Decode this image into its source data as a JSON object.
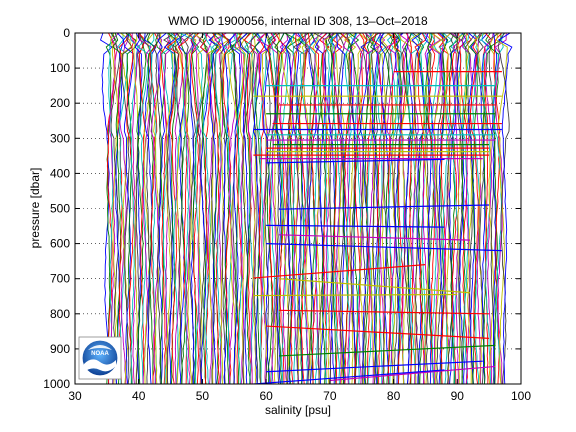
{
  "chart_data": {
    "type": "line",
    "title": "WMO ID 1900056, internal ID 308, 13–Oct–2018",
    "xlabel": "salinity [psu]",
    "ylabel": "pressure [dbar]",
    "xlim": [
      30,
      100
    ],
    "ylim": [
      1000,
      0
    ],
    "y_reversed": true,
    "xticks": [
      30,
      40,
      50,
      60,
      70,
      80,
      90,
      100
    ],
    "yticks": [
      0,
      100,
      200,
      300,
      400,
      500,
      600,
      700,
      800,
      900,
      1000
    ],
    "grid": "dotted, on y ticks",
    "legend": "none",
    "profile_colors": [
      "#0000ff",
      "#008000",
      "#ff0000",
      "#00bfbf",
      "#bf00bf",
      "#bfbf00",
      "#404040"
    ],
    "profiles": {
      "x_start": 35.0,
      "x_end": 97.5,
      "count": 260,
      "pressure_range": [
        0,
        1000
      ]
    },
    "bad_segments": [
      {
        "x": [
          80,
          97
        ],
        "y": [
          110,
          110
        ],
        "color": "#ff0000"
      },
      {
        "x": [
          60,
          96
        ],
        "y": [
          150,
          150
        ],
        "color": "#00bfbf"
      },
      {
        "x": [
          58,
          97
        ],
        "y": [
          180,
          180
        ],
        "color": "#bfbf00"
      },
      {
        "x": [
          62,
          96
        ],
        "y": [
          205,
          205
        ],
        "color": "#ff0000"
      },
      {
        "x": [
          60,
          96
        ],
        "y": [
          230,
          230
        ],
        "color": "#008000"
      },
      {
        "x": [
          61,
          97
        ],
        "y": [
          258,
          258
        ],
        "color": "#ff0000"
      },
      {
        "x": [
          58,
          97
        ],
        "y": [
          275,
          275
        ],
        "color": "#0000ff"
      },
      {
        "x": [
          60,
          96
        ],
        "y": [
          290,
          290
        ],
        "color": "#00bfbf"
      },
      {
        "x": [
          60,
          96
        ],
        "y": [
          305,
          305
        ],
        "color": "#bf00bf"
      },
      {
        "x": [
          61,
          95
        ],
        "y": [
          318,
          318
        ],
        "color": "#008000"
      },
      {
        "x": [
          60,
          95
        ],
        "y": [
          328,
          328
        ],
        "color": "#ff0000"
      },
      {
        "x": [
          60,
          95
        ],
        "y": [
          338,
          338
        ],
        "color": "#bfbf00"
      },
      {
        "x": [
          58,
          95
        ],
        "y": [
          348,
          348
        ],
        "color": "#ff0000"
      },
      {
        "x": [
          59,
          94
        ],
        "y": [
          358,
          358
        ],
        "color": "#bf00bf"
      },
      {
        "x": [
          60,
          88
        ],
        "y": [
          370,
          360
        ],
        "color": "#0000ff"
      },
      {
        "x": [
          62,
          95
        ],
        "y": [
          502,
          490
        ],
        "color": "#0000ff"
      },
      {
        "x": [
          60,
          88
        ],
        "y": [
          548,
          553
        ],
        "color": "#0000ff"
      },
      {
        "x": [
          60,
          97
        ],
        "y": [
          600,
          620
        ],
        "color": "#0000ff"
      },
      {
        "x": [
          62,
          92
        ],
        "y": [
          575,
          590
        ],
        "color": "#bf00bf"
      },
      {
        "x": [
          58,
          85
        ],
        "y": [
          698,
          660
        ],
        "color": "#ff0000"
      },
      {
        "x": [
          62,
          92
        ],
        "y": [
          700,
          740
        ],
        "color": "#bfbf00"
      },
      {
        "x": [
          58,
          90
        ],
        "y": [
          748,
          745
        ],
        "color": "#bfbf00"
      },
      {
        "x": [
          62,
          95
        ],
        "y": [
          790,
          800
        ],
        "color": "#ff0000"
      },
      {
        "x": [
          60,
          95
        ],
        "y": [
          835,
          870
        ],
        "color": "#ff0000"
      },
      {
        "x": [
          62,
          96
        ],
        "y": [
          920,
          890
        ],
        "color": "#008000"
      },
      {
        "x": [
          60,
          94
        ],
        "y": [
          965,
          935
        ],
        "color": "#0000ff"
      },
      {
        "x": [
          70,
          96
        ],
        "y": [
          990,
          950
        ],
        "color": "#bf00bf"
      },
      {
        "x": [
          58,
          88
        ],
        "y": [
          1000,
          960
        ],
        "color": "#0000ff"
      }
    ]
  },
  "logo": {
    "name": "noaa-logo",
    "text": "NOAA"
  }
}
